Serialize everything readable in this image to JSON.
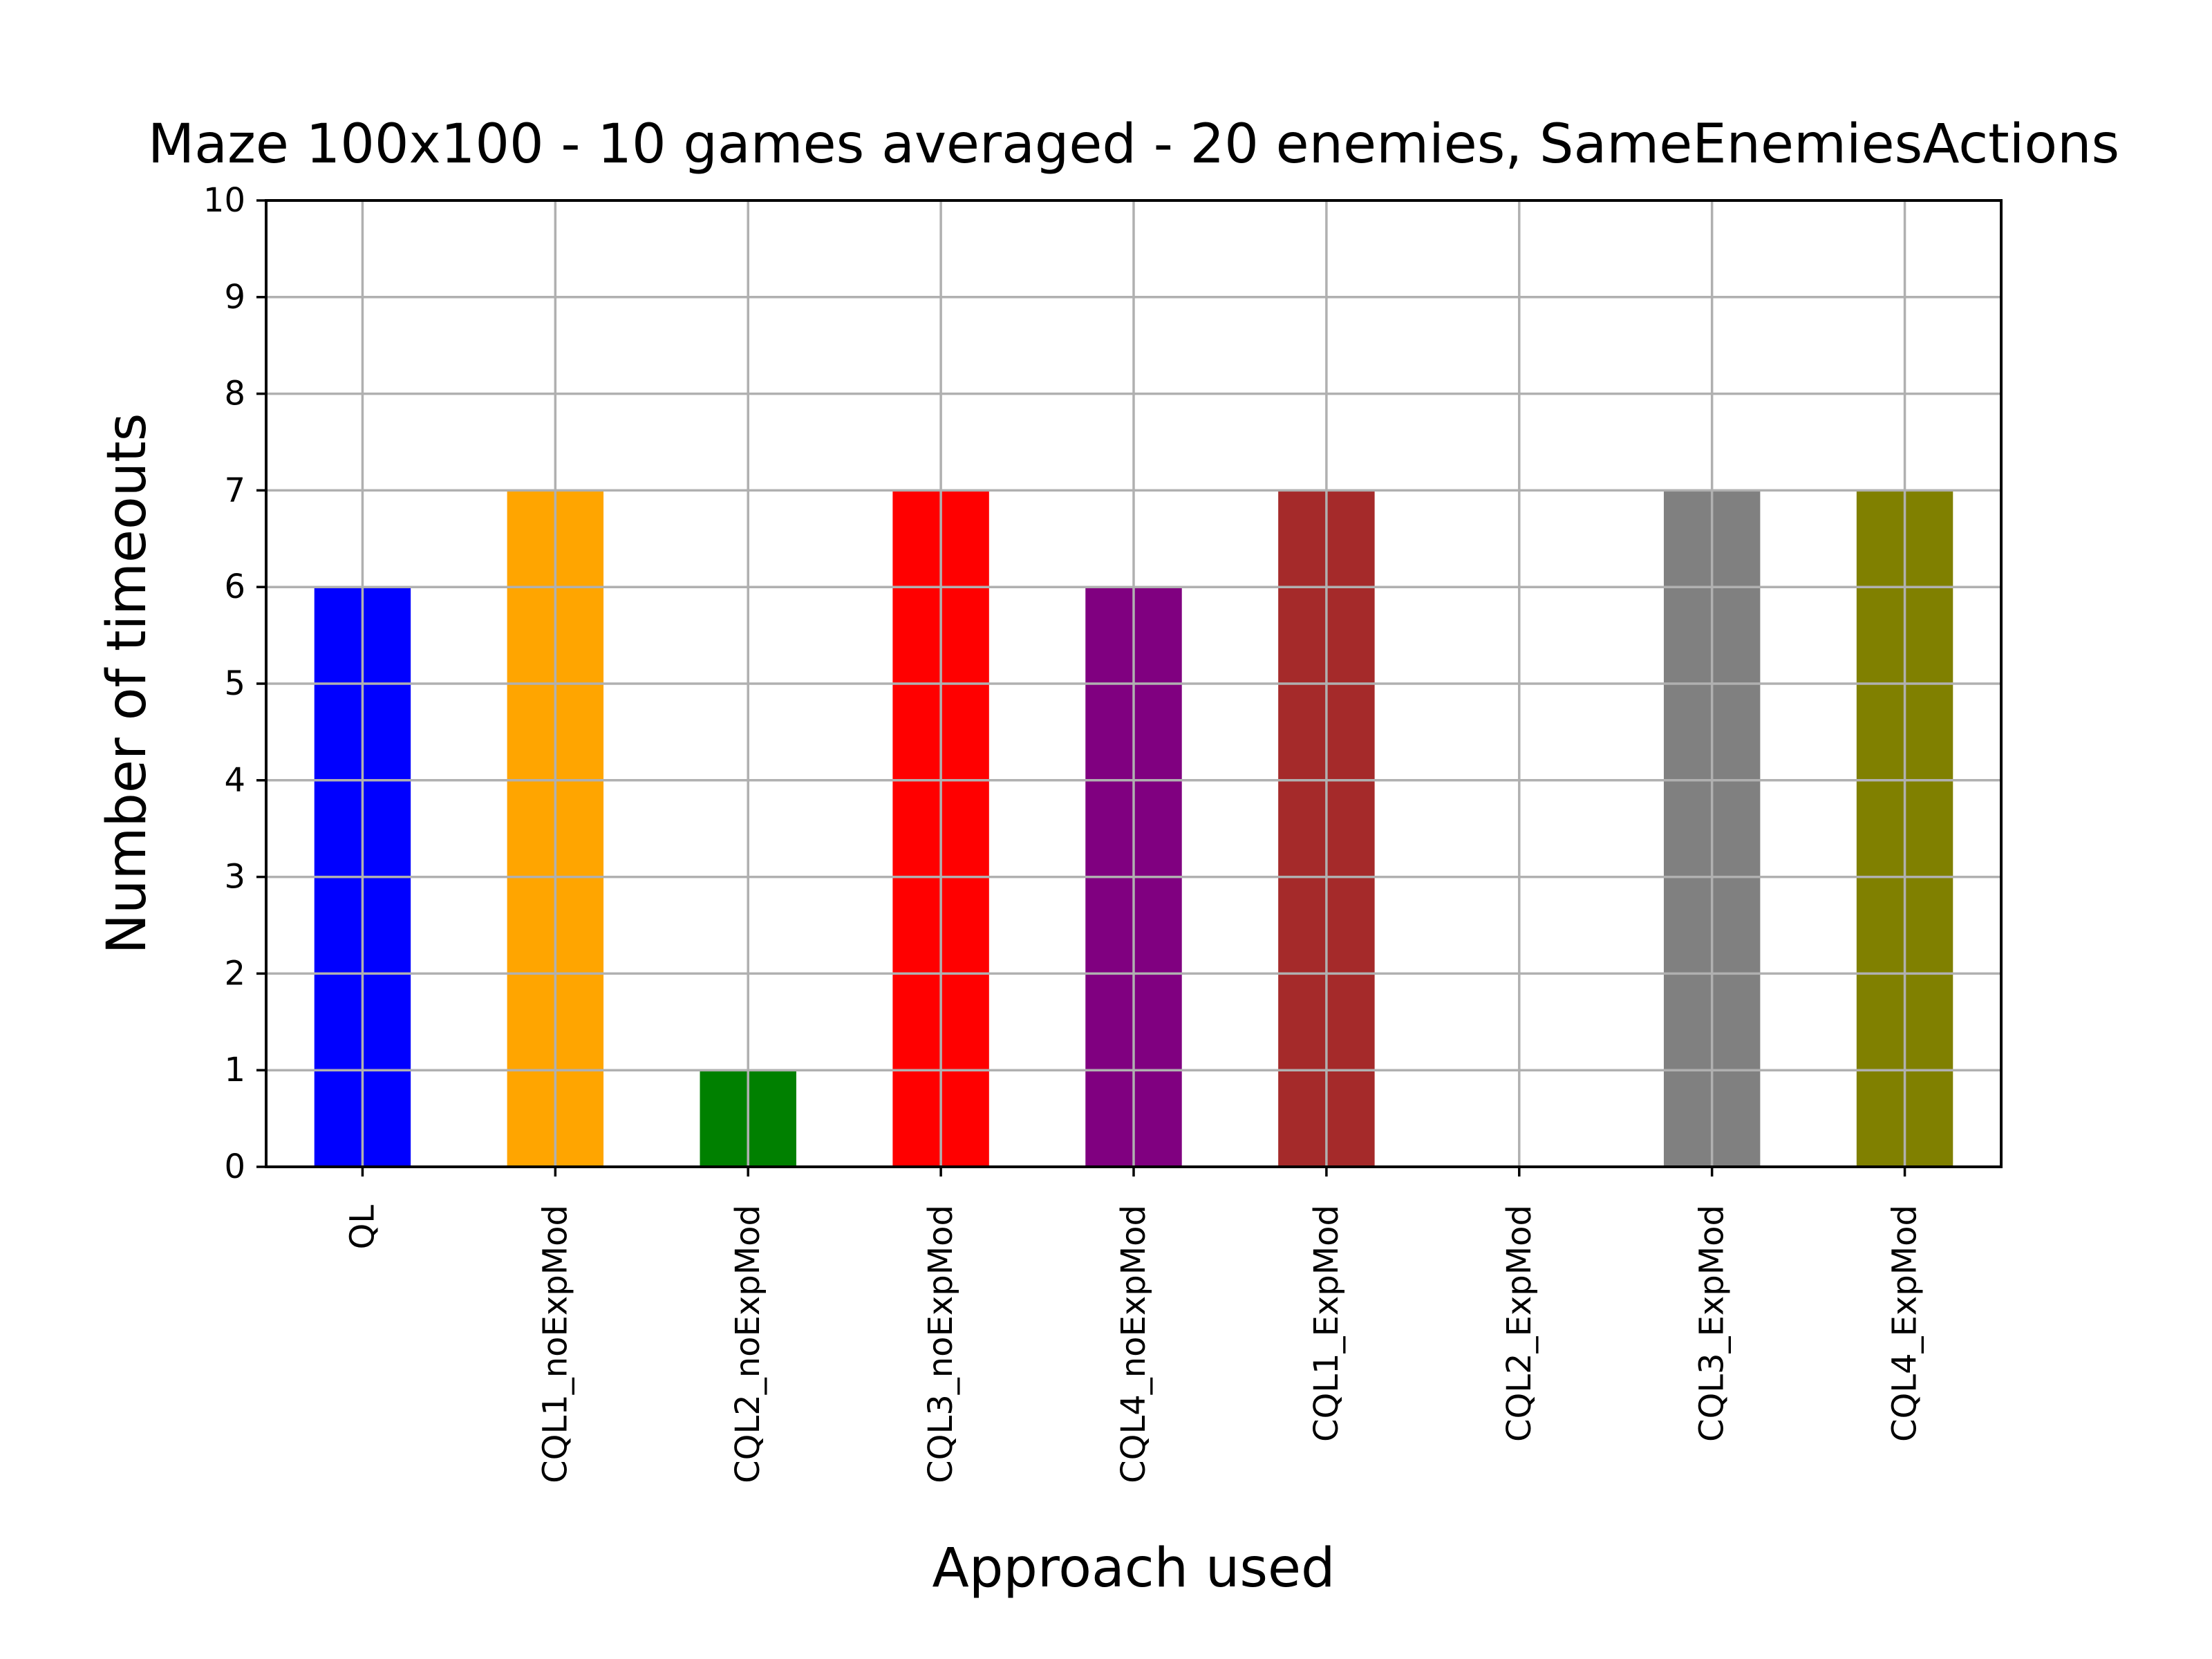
{
  "chart_data": {
    "type": "bar",
    "title": "Maze 100x100 - 10 games averaged - 20 enemies, SameEnemiesActions",
    "xlabel": "Approach used",
    "ylabel": "Number of timeouts",
    "categories": [
      "QL",
      "CQL1_noExpMod",
      "CQL2_noExpMod",
      "CQL3_noExpMod",
      "CQL4_noExpMod",
      "CQL1_ExpMod",
      "CQL2_ExpMod",
      "CQL3_ExpMod",
      "CQL4_ExpMod"
    ],
    "values": [
      6,
      7,
      1,
      7,
      6,
      7,
      0,
      7,
      7
    ],
    "colors": [
      "#0000ff",
      "#ffa500",
      "#008000",
      "#ff0000",
      "#800080",
      "#a52a2a",
      "#ffc0cb",
      "#808080",
      "#808000"
    ],
    "ylim": [
      0,
      10
    ],
    "yticks": [
      "0",
      "1",
      "2",
      "3",
      "4",
      "5",
      "6",
      "7",
      "8",
      "9",
      "10"
    ],
    "grid": true,
    "legend": "none"
  }
}
